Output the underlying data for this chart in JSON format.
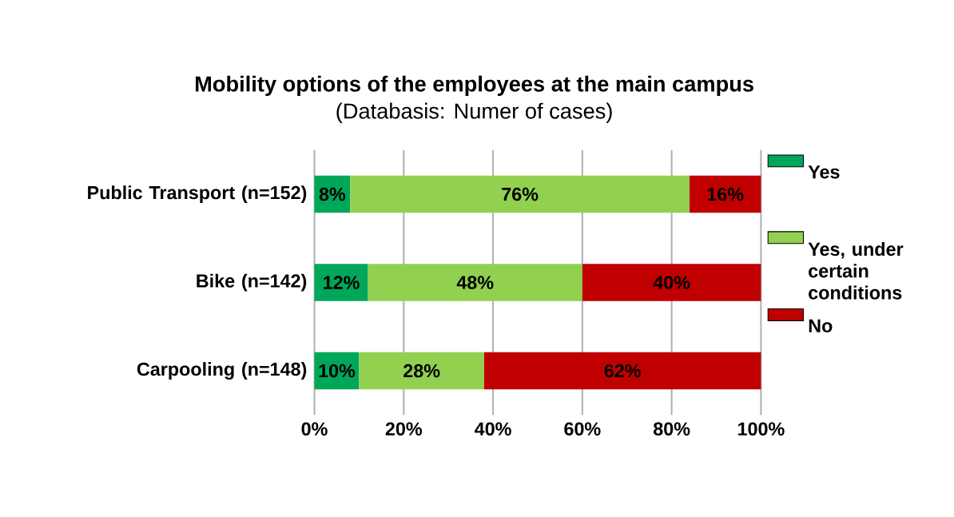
{
  "chart_data": {
    "type": "bar",
    "orientation": "horizontal",
    "stacked": true,
    "title": "Mobility options of the employees at the main campus",
    "subtitle": "(Databasis: Numer of cases)",
    "categories": [
      "Public Transport (n=152)",
      "Bike (n=142)",
      "Carpooling (n=148)"
    ],
    "series": [
      {
        "name": "Yes",
        "color": "#00a65a",
        "values": [
          8,
          12,
          10
        ],
        "value_labels": [
          "8%",
          "12%",
          "10%"
        ]
      },
      {
        "name": "Yes, under certain conditions",
        "color": "#92d050",
        "values": [
          76,
          48,
          28
        ],
        "value_labels": [
          "76%",
          "48%",
          "28%"
        ]
      },
      {
        "name": "No",
        "color": "#c00000",
        "values": [
          16,
          40,
          62
        ],
        "value_labels": [
          "16%",
          "40%",
          "62%"
        ]
      }
    ],
    "xlim": [
      0,
      100
    ],
    "xticks": [
      {
        "value": 0,
        "label": "0%"
      },
      {
        "value": 20,
        "label": "20%"
      },
      {
        "value": 40,
        "label": "40%"
      },
      {
        "value": 60,
        "label": "60%"
      },
      {
        "value": 80,
        "label": "80%"
      },
      {
        "value": 100,
        "label": "100%"
      }
    ],
    "grid": "x",
    "legend": "right"
  }
}
